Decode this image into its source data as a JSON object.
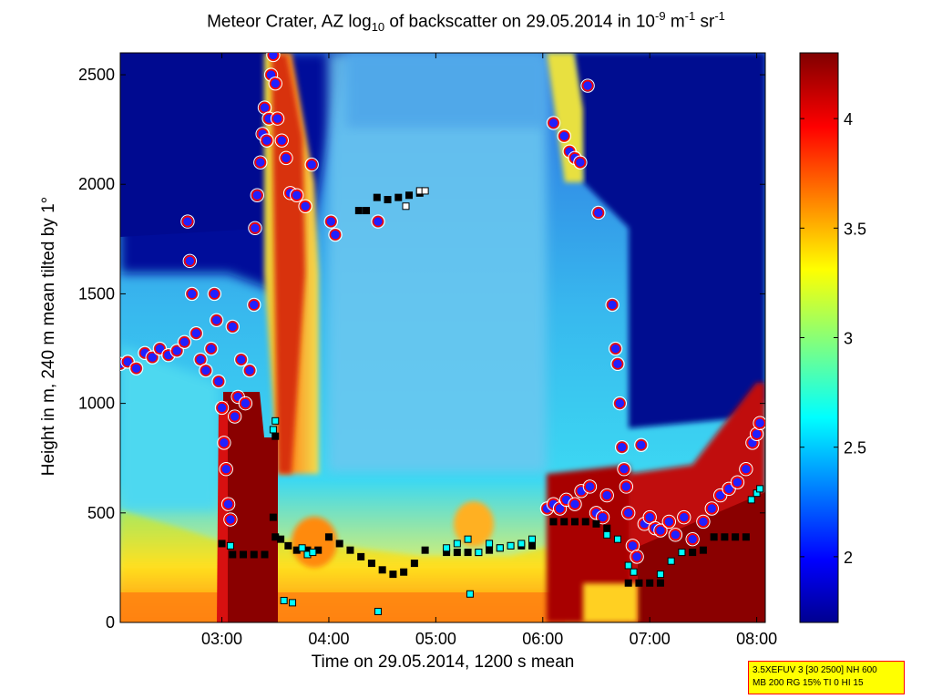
{
  "chart_data": {
    "type": "heatmap",
    "title": {
      "part1": "Meteor Crater, AZ log",
      "sub": "10",
      "part2": " of backscatter on 29.05.2014 in 10",
      "sup1": "-9",
      "part3": " m",
      "sup2": "-1",
      "part4": " sr",
      "sup3": "-1"
    },
    "xlabel": "Time on 29.05.2014, 1200 s mean",
    "ylabel": "Height in m, 240 m mean tilted by 1°",
    "xlim_hours": [
      2.05,
      8.08
    ],
    "ylim": [
      0,
      2600
    ],
    "x_ticks": [
      {
        "value": 3,
        "label": "03:00"
      },
      {
        "value": 4,
        "label": "04:00"
      },
      {
        "value": 5,
        "label": "05:00"
      },
      {
        "value": 6,
        "label": "06:00"
      },
      {
        "value": 7,
        "label": "07:00"
      },
      {
        "value": 8,
        "label": "08:00"
      }
    ],
    "y_ticks": [
      0,
      500,
      1000,
      1500,
      2000,
      2500
    ],
    "colorbar": {
      "range": [
        1.7,
        4.3
      ],
      "ticks": [
        2,
        2.5,
        3,
        3.5,
        4
      ],
      "colormap": "jet"
    },
    "grid": false,
    "series": [
      {
        "marker": "circle",
        "color": "#ff0000",
        "points": [
          [
            2.05,
            1180
          ],
          [
            2.12,
            1190
          ],
          [
            2.2,
            1160
          ],
          [
            2.28,
            1230
          ],
          [
            2.35,
            1210
          ],
          [
            2.42,
            1250
          ],
          [
            2.5,
            1220
          ],
          [
            2.58,
            1240
          ],
          [
            2.65,
            1280
          ],
          [
            2.68,
            1830
          ],
          [
            2.7,
            1650
          ],
          [
            2.72,
            1500
          ],
          [
            2.76,
            1320
          ],
          [
            2.8,
            1200
          ],
          [
            2.85,
            1150
          ],
          [
            2.9,
            1250
          ],
          [
            2.93,
            1500
          ],
          [
            2.95,
            1380
          ],
          [
            2.97,
            1100
          ],
          [
            3.0,
            980
          ],
          [
            3.02,
            820
          ],
          [
            3.04,
            700
          ],
          [
            3.06,
            540
          ],
          [
            3.08,
            470
          ],
          [
            3.1,
            1350
          ],
          [
            3.12,
            940
          ],
          [
            3.15,
            1030
          ],
          [
            3.18,
            1200
          ],
          [
            3.22,
            1000
          ],
          [
            3.26,
            1150
          ],
          [
            3.3,
            1450
          ],
          [
            3.31,
            1800
          ],
          [
            3.33,
            1950
          ],
          [
            3.36,
            2100
          ],
          [
            3.38,
            2230
          ],
          [
            3.4,
            2350
          ],
          [
            3.42,
            2200
          ],
          [
            3.44,
            2300
          ],
          [
            3.46,
            2500
          ],
          [
            3.48,
            2590
          ],
          [
            3.5,
            2460
          ],
          [
            3.52,
            2300
          ],
          [
            3.56,
            2200
          ],
          [
            3.6,
            2120
          ],
          [
            3.64,
            1960
          ],
          [
            3.7,
            1950
          ],
          [
            3.78,
            1900
          ],
          [
            3.84,
            2090
          ],
          [
            4.02,
            1830
          ],
          [
            4.06,
            1770
          ],
          [
            4.46,
            1830
          ]
        ]
      },
      {
        "marker": "circle",
        "color": "#ff0000",
        "points": [
          [
            6.1,
            2280
          ],
          [
            6.2,
            2220
          ],
          [
            6.25,
            2150
          ],
          [
            6.3,
            2120
          ],
          [
            6.35,
            2100
          ],
          [
            6.42,
            2450
          ],
          [
            6.52,
            1870
          ],
          [
            6.65,
            1450
          ],
          [
            6.68,
            1250
          ],
          [
            6.7,
            1180
          ],
          [
            6.72,
            1000
          ],
          [
            6.74,
            800
          ],
          [
            6.76,
            700
          ],
          [
            6.78,
            620
          ],
          [
            6.8,
            500
          ],
          [
            6.84,
            350
          ],
          [
            6.88,
            300
          ],
          [
            6.92,
            810
          ],
          [
            6.95,
            450
          ],
          [
            7.0,
            480
          ],
          [
            7.05,
            430
          ],
          [
            7.1,
            420
          ],
          [
            7.18,
            460
          ],
          [
            7.24,
            400
          ],
          [
            7.32,
            480
          ],
          [
            7.4,
            380
          ],
          [
            7.5,
            460
          ],
          [
            7.58,
            520
          ],
          [
            7.66,
            580
          ],
          [
            7.74,
            610
          ],
          [
            7.82,
            640
          ],
          [
            7.9,
            700
          ],
          [
            7.96,
            820
          ],
          [
            8.0,
            860
          ],
          [
            8.03,
            910
          ],
          [
            6.04,
            520
          ],
          [
            6.1,
            540
          ],
          [
            6.16,
            520
          ],
          [
            6.22,
            560
          ],
          [
            6.3,
            540
          ],
          [
            6.36,
            600
          ],
          [
            6.44,
            620
          ],
          [
            6.5,
            500
          ],
          [
            6.56,
            480
          ],
          [
            6.6,
            580
          ]
        ]
      },
      {
        "marker": "square",
        "color": "#000000",
        "points": [
          [
            3.0,
            360
          ],
          [
            3.1,
            310
          ],
          [
            3.2,
            310
          ],
          [
            3.3,
            310
          ],
          [
            3.4,
            310
          ],
          [
            3.5,
            390
          ],
          [
            3.55,
            380
          ],
          [
            3.62,
            350
          ],
          [
            3.7,
            330
          ],
          [
            3.8,
            330
          ],
          [
            3.9,
            330
          ],
          [
            4.0,
            390
          ],
          [
            4.1,
            360
          ],
          [
            4.2,
            330
          ],
          [
            4.3,
            300
          ],
          [
            4.4,
            270
          ],
          [
            4.5,
            240
          ],
          [
            4.6,
            220
          ],
          [
            4.7,
            230
          ],
          [
            4.8,
            270
          ],
          [
            4.9,
            330
          ],
          [
            5.1,
            320
          ],
          [
            5.2,
            320
          ],
          [
            5.3,
            320
          ],
          [
            5.4,
            320
          ],
          [
            5.5,
            330
          ],
          [
            5.6,
            340
          ],
          [
            5.7,
            350
          ],
          [
            5.8,
            350
          ],
          [
            5.9,
            350
          ],
          [
            6.1,
            460
          ],
          [
            6.2,
            460
          ],
          [
            6.3,
            460
          ],
          [
            6.4,
            460
          ],
          [
            6.5,
            450
          ],
          [
            6.6,
            430
          ],
          [
            6.8,
            180
          ],
          [
            6.9,
            180
          ],
          [
            7.0,
            180
          ],
          [
            7.1,
            180
          ],
          [
            7.3,
            320
          ],
          [
            7.4,
            320
          ],
          [
            7.5,
            330
          ],
          [
            7.6,
            390
          ],
          [
            7.7,
            390
          ],
          [
            7.8,
            390
          ],
          [
            7.9,
            390
          ],
          [
            4.28,
            1880
          ],
          [
            4.35,
            1880
          ],
          [
            4.45,
            1940
          ],
          [
            4.55,
            1930
          ],
          [
            4.65,
            1940
          ],
          [
            4.75,
            1950
          ],
          [
            4.85,
            1960
          ],
          [
            3.5,
            850
          ],
          [
            3.48,
            480
          ]
        ]
      },
      {
        "marker": "square",
        "color": "#00ffff",
        "points": [
          [
            3.5,
            920
          ],
          [
            3.48,
            880
          ],
          [
            3.08,
            350
          ],
          [
            3.58,
            100
          ],
          [
            3.66,
            90
          ],
          [
            3.75,
            340
          ],
          [
            3.8,
            310
          ],
          [
            3.85,
            320
          ],
          [
            4.46,
            50
          ],
          [
            5.1,
            340
          ],
          [
            5.2,
            360
          ],
          [
            5.3,
            380
          ],
          [
            5.32,
            130
          ],
          [
            5.4,
            320
          ],
          [
            5.5,
            360
          ],
          [
            5.6,
            340
          ],
          [
            5.7,
            350
          ],
          [
            5.8,
            360
          ],
          [
            5.9,
            380
          ],
          [
            6.6,
            400
          ],
          [
            6.7,
            380
          ],
          [
            6.8,
            260
          ],
          [
            6.85,
            230
          ],
          [
            7.1,
            220
          ],
          [
            7.2,
            280
          ],
          [
            7.3,
            320
          ],
          [
            7.95,
            560
          ],
          [
            8.0,
            590
          ],
          [
            8.03,
            610
          ]
        ]
      },
      {
        "marker": "square",
        "color": "#ffffff",
        "points": [
          [
            4.72,
            1900
          ],
          [
            4.85,
            1970
          ],
          [
            4.9,
            1970
          ]
        ]
      }
    ]
  },
  "infobox": {
    "line1": "3.5XEFUV 3 [30 2500] NH 600",
    "line2": "MB 200 RG 15% TI 0 HI 15"
  }
}
